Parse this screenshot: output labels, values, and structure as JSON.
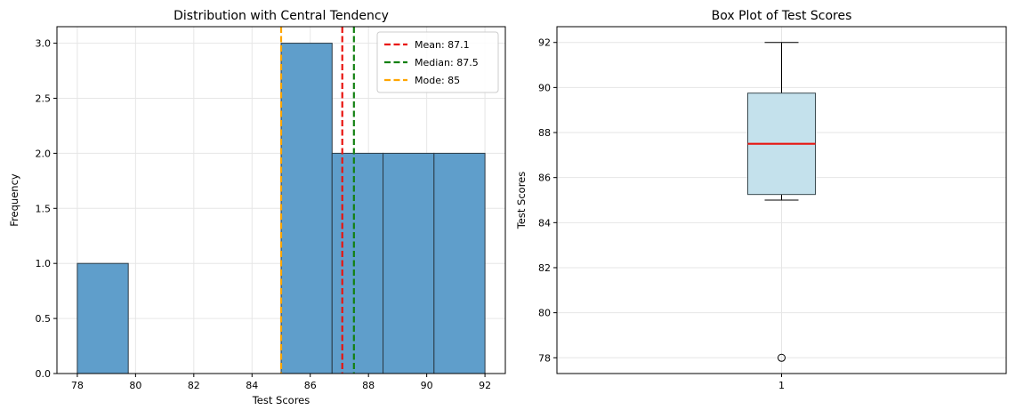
{
  "chart_data": [
    {
      "type": "bar",
      "title": "Distribution with Central Tendency",
      "xlabel": "Test Scores",
      "ylabel": "Frequency",
      "xlim": [
        77.3,
        92.7
      ],
      "ylim": [
        0,
        3.15
      ],
      "xticks": [
        "78",
        "80",
        "82",
        "84",
        "86",
        "88",
        "90",
        "92"
      ],
      "yticks": [
        "0.0",
        "0.5",
        "1.0",
        "1.5",
        "2.0",
        "2.5",
        "3.0"
      ],
      "grid": true,
      "bar_color": "#5f9ecb",
      "bins": [
        {
          "from": 78.0,
          "to": 79.75,
          "count": 1
        },
        {
          "from": 79.75,
          "to": 81.5,
          "count": 0
        },
        {
          "from": 81.5,
          "to": 83.25,
          "count": 0
        },
        {
          "from": 83.25,
          "to": 85.0,
          "count": 0
        },
        {
          "from": 85.0,
          "to": 86.75,
          "count": 3
        },
        {
          "from": 86.75,
          "to": 88.5,
          "count": 2
        },
        {
          "from": 88.5,
          "to": 90.25,
          "count": 2
        },
        {
          "from": 90.25,
          "to": 92.0,
          "count": 2
        }
      ],
      "reference_lines": [
        {
          "label": "Mean: 87.1",
          "x": 87.1,
          "color": "#e8140f"
        },
        {
          "label": "Median: 87.5",
          "x": 87.5,
          "color": "#138112"
        },
        {
          "label": "Mode: 85",
          "x": 85.0,
          "color": "#ffa500"
        }
      ],
      "legend_position": "top-right"
    },
    {
      "type": "box",
      "title": "Box Plot of Test Scores",
      "ylabel": "Test Scores",
      "xticks": [
        "1"
      ],
      "yticks": [
        "78",
        "80",
        "82",
        "84",
        "86",
        "88",
        "90",
        "92"
      ],
      "ylim": [
        77.3,
        92.7
      ],
      "grid": true,
      "box": {
        "category": "1",
        "whisker_low": 85.0,
        "q1": 85.25,
        "median": 87.5,
        "q3": 89.75,
        "whisker_high": 92.0,
        "outliers": [
          78.0
        ]
      },
      "box_color": "#c4e1ec",
      "median_color": "#e8140f"
    }
  ]
}
